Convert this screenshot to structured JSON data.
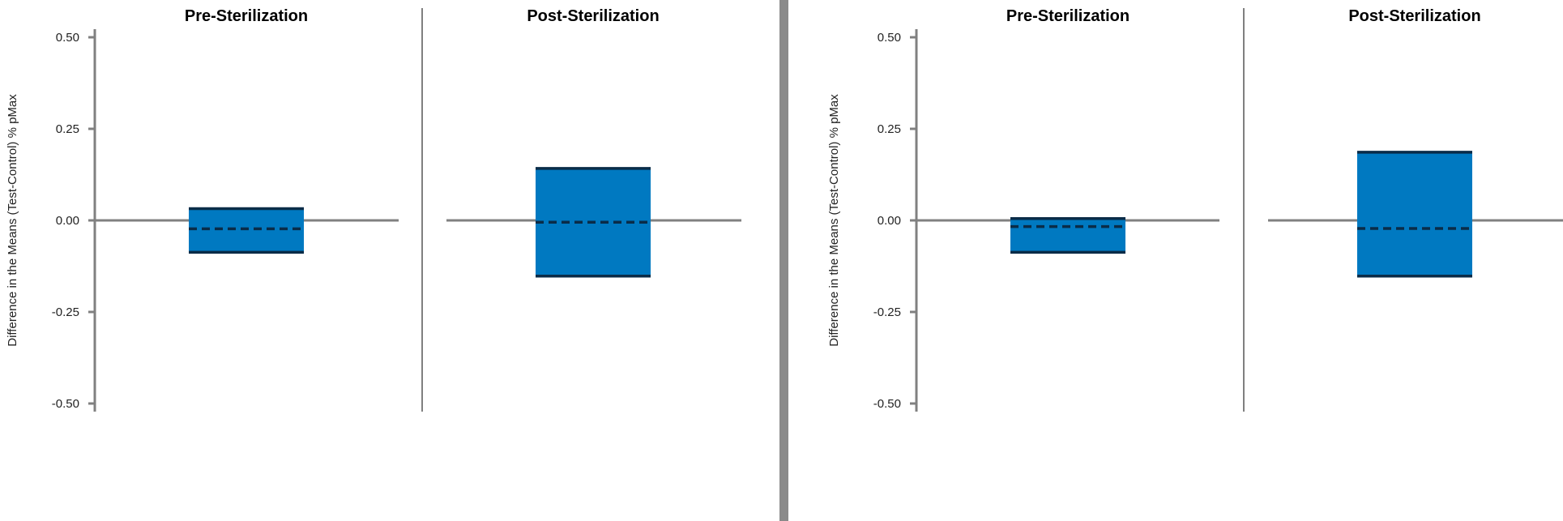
{
  "chart_data": [
    {
      "type": "box",
      "ylabel": "Difference in the Means (Test-Control) % pMax",
      "ylim": [
        -0.5,
        0.5
      ],
      "yticks": [
        "0.50",
        "0.25",
        "0.00",
        "-0.25",
        "-0.50"
      ],
      "ytick_values": [
        0.5,
        0.25,
        0.0,
        -0.25,
        -0.5
      ],
      "panels": [
        {
          "title": "Pre-Sterilization",
          "low": -0.087,
          "high": 0.032,
          "mean": -0.023
        },
        {
          "title": "Post-Sterilization",
          "low": -0.152,
          "high": 0.142,
          "mean": -0.005
        }
      ]
    },
    {
      "type": "box",
      "ylabel": "Difference in the Means (Test-Control) % pMax",
      "ylim": [
        -0.5,
        0.5
      ],
      "yticks": [
        "0.50",
        "0.25",
        "0.00",
        "-0.25",
        "-0.50"
      ],
      "ytick_values": [
        0.5,
        0.25,
        0.0,
        -0.25,
        -0.5
      ],
      "panels": [
        {
          "title": "Pre-Sterilization",
          "low": -0.087,
          "high": 0.005,
          "mean": -0.017
        },
        {
          "title": "Post-Sterilization",
          "low": -0.152,
          "high": 0.186,
          "mean": -0.022
        }
      ]
    }
  ],
  "colors": {
    "box_fill": "#0079c1",
    "box_edge": "#0a2c48",
    "axis": "#808080",
    "divider": "#8a8a8a"
  }
}
